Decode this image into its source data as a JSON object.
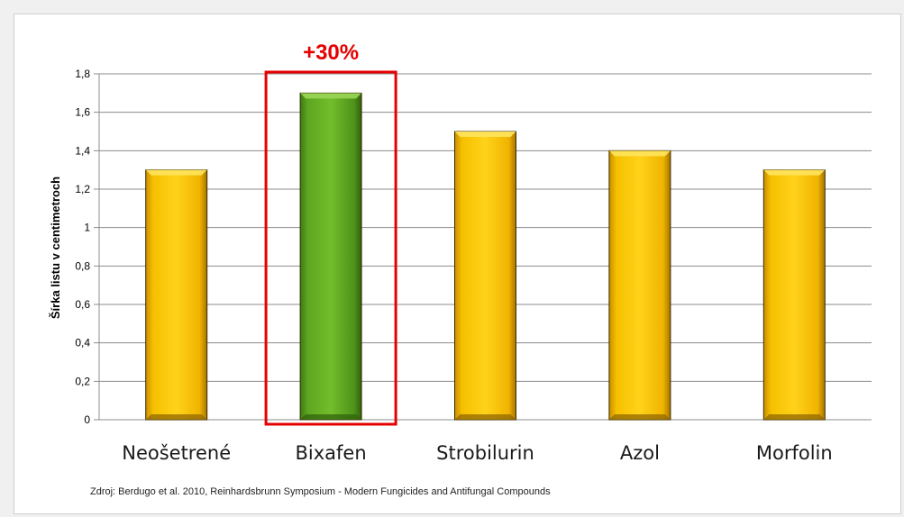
{
  "chart_data": {
    "type": "bar",
    "categories": [
      "Neošetrené",
      "Bixafen",
      "Strobilurin",
      "Azol",
      "Morfolin"
    ],
    "values": [
      1.3,
      1.7,
      1.5,
      1.4,
      1.3
    ],
    "ylabel": "Šírka listu v centimetroch",
    "xlabel": "",
    "ylim": [
      0,
      1.8
    ],
    "yticks": [
      0,
      0.2,
      0.4,
      0.6,
      0.8,
      1,
      1.2,
      1.4,
      1.6,
      1.8
    ],
    "ytick_labels": [
      "0",
      "0,2",
      "0,4",
      "0,6",
      "0,8",
      "1",
      "1,2",
      "1,4",
      "1,6",
      "1,8"
    ],
    "grid": true,
    "bar_colors": [
      "#f2b705",
      "#5a9e1f",
      "#f2b705",
      "#f2b705",
      "#f2b705"
    ],
    "highlight": {
      "category": "Bixafen",
      "label": "+30%",
      "color": "#e60000"
    }
  },
  "source": "Zdroj: Berdugo et al. 2010,  Reinhardsbrunn Symposium - Modern Fungicides and Antifungal Compounds"
}
